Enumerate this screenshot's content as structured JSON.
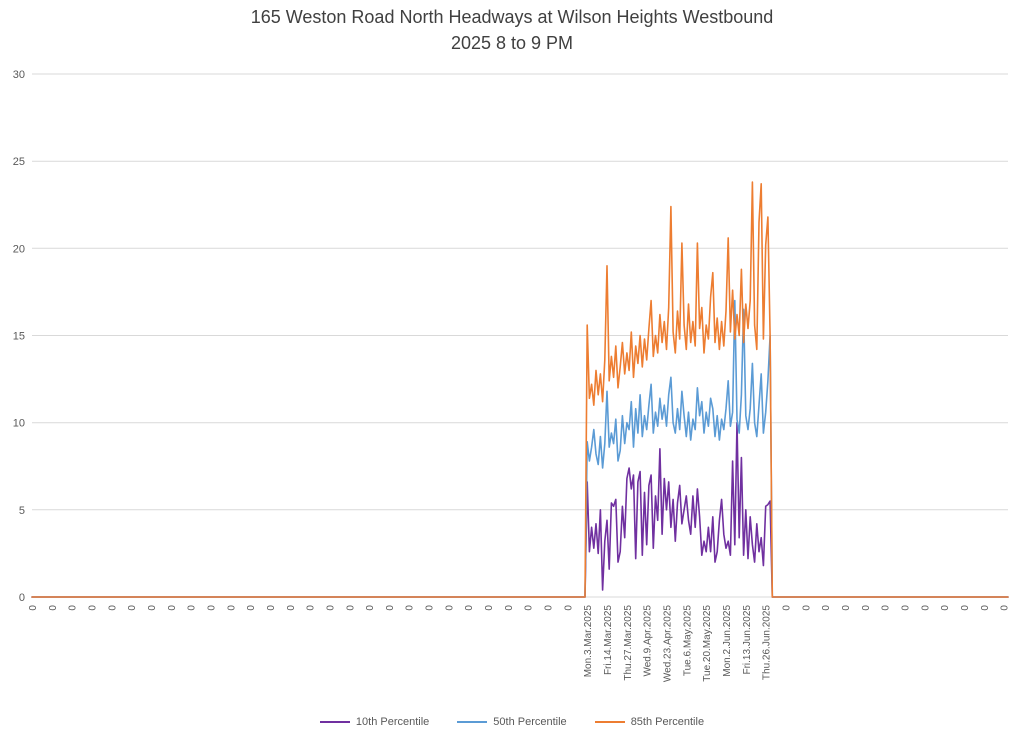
{
  "chart_data": {
    "type": "line",
    "title": "165 Weston Road North Headways at Wilson Heights Westbound",
    "subtitle": "2025 8 to 9 PM",
    "ylim": [
      0,
      30
    ],
    "yticks": [
      0,
      5,
      10,
      15,
      20,
      25,
      30
    ],
    "grid": "horizontal",
    "grid_color": "#D9D9D9",
    "axis_text_color": "#595959",
    "title_color": "#404040",
    "legend_position": "bottom",
    "x_axis": {
      "zero_label": "0",
      "left_zero_label_count": 28,
      "right_zero_label_count": 12,
      "label_interval": 9,
      "date_labels": [
        "Mon.3.Mar.2025",
        "Fri.14.Mar.2025",
        "Thu.27.Mar.2025",
        "Wed.9.Apr.2025",
        "Wed.23.Apr.2025",
        "Tue.6.May.2025",
        "Tue.20.May.2025",
        "Mon.2.Jun.2025",
        "Fri.13.Jun.2025",
        "Thu.26.Jun.2025"
      ]
    },
    "baseline_value": 0,
    "series": [
      {
        "name": "10th Percentile",
        "color": "#7030A0",
        "values": [
          6.6,
          2.6,
          4.0,
          2.8,
          4.2,
          2.5,
          5.0,
          0.4,
          3.2,
          4.4,
          1.6,
          5.4,
          5.2,
          5.6,
          2.0,
          2.6,
          5.2,
          3.4,
          6.8,
          7.4,
          6.2,
          7.0,
          2.2,
          6.6,
          7.2,
          2.4,
          6.0,
          3.0,
          6.4,
          7.0,
          2.8,
          5.8,
          4.4,
          8.5,
          3.6,
          6.8,
          5.0,
          6.6,
          4.0,
          5.6,
          3.2,
          5.4,
          6.4,
          4.2,
          5.0,
          5.8,
          4.4,
          3.6,
          5.8,
          4.0,
          6.2,
          4.6,
          2.4,
          3.2,
          2.6,
          4.0,
          2.6,
          4.6,
          2.0,
          2.6,
          4.4,
          5.6,
          3.6,
          2.8,
          3.2,
          2.4,
          7.8,
          3.0,
          10.0,
          3.4,
          8.0,
          2.4,
          5.0,
          2.2,
          4.6,
          3.0,
          2.0,
          4.2,
          2.6,
          3.4,
          1.8,
          5.2,
          5.3,
          5.5
        ]
      },
      {
        "name": "50th Percentile",
        "color": "#5B9BD5",
        "values": [
          8.9,
          7.8,
          8.6,
          9.6,
          8.2,
          7.6,
          9.2,
          7.4,
          8.8,
          11.8,
          8.6,
          9.4,
          8.8,
          10.2,
          7.8,
          8.4,
          10.4,
          8.8,
          10.0,
          9.6,
          11.2,
          8.6,
          10.8,
          9.4,
          11.6,
          9.2,
          10.4,
          9.6,
          11.0,
          12.2,
          9.4,
          10.6,
          9.8,
          11.4,
          10.2,
          11.0,
          9.8,
          11.6,
          12.6,
          10.0,
          9.4,
          10.8,
          9.6,
          11.8,
          10.4,
          9.2,
          10.6,
          9.0,
          10.2,
          9.6,
          12.0,
          10.4,
          11.2,
          9.4,
          10.6,
          9.8,
          11.4,
          10.8,
          9.2,
          10.4,
          9.0,
          10.2,
          9.6,
          10.8,
          12.4,
          9.8,
          10.6,
          17.0,
          10.2,
          9.4,
          11.6,
          16.5,
          10.4,
          9.6,
          10.8,
          13.4,
          10.0,
          9.2,
          11.0,
          12.8,
          9.4,
          10.6,
          12.4,
          15.0
        ]
      },
      {
        "name": "85th Percentile",
        "color": "#ED7D31",
        "values": [
          15.6,
          11.4,
          12.2,
          11.0,
          13.0,
          11.6,
          12.8,
          11.2,
          13.6,
          19.0,
          12.4,
          13.8,
          12.6,
          14.4,
          12.0,
          13.2,
          14.6,
          12.8,
          14.0,
          13.0,
          15.2,
          12.6,
          14.4,
          13.4,
          15.0,
          13.2,
          14.8,
          13.6,
          15.4,
          17.0,
          13.8,
          15.0,
          14.0,
          16.2,
          14.6,
          15.8,
          14.2,
          16.6,
          22.4,
          15.2,
          14.0,
          16.4,
          14.8,
          20.3,
          15.6,
          14.2,
          16.8,
          14.6,
          15.8,
          14.4,
          20.3,
          15.4,
          16.6,
          14.0,
          15.6,
          14.8,
          17.2,
          18.6,
          14.6,
          16.0,
          14.2,
          15.8,
          14.4,
          16.4,
          20.6,
          15.2,
          17.6,
          14.8,
          16.2,
          15.0,
          18.8,
          14.6,
          16.8,
          15.4,
          17.0,
          23.8,
          15.6,
          14.2,
          21.5,
          23.7,
          14.8,
          20.2,
          21.8,
          15.0
        ]
      }
    ]
  }
}
